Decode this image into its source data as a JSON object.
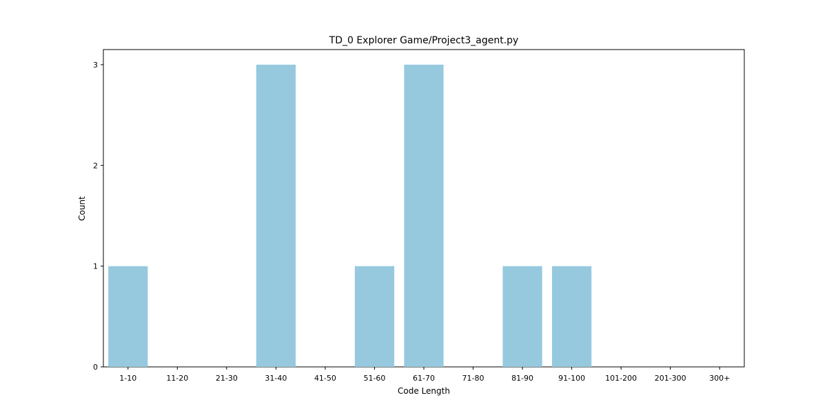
{
  "chart_data": {
    "type": "bar",
    "title": "TD_0 Explorer Game/Project3_agent.py",
    "xlabel": "Code Length",
    "ylabel": "Count",
    "categories": [
      "1-10",
      "11-20",
      "21-30",
      "31-40",
      "41-50",
      "51-60",
      "61-70",
      "71-80",
      "81-90",
      "91-100",
      "101-200",
      "201-300",
      "300+"
    ],
    "values": [
      1,
      0,
      0,
      3,
      0,
      1,
      3,
      0,
      1,
      1,
      0,
      0,
      0
    ],
    "ylim": [
      0,
      3.15
    ],
    "yticks": [
      0,
      1,
      2,
      3
    ],
    "grid": false,
    "legend": "none",
    "bar_color": "#96c9de"
  }
}
